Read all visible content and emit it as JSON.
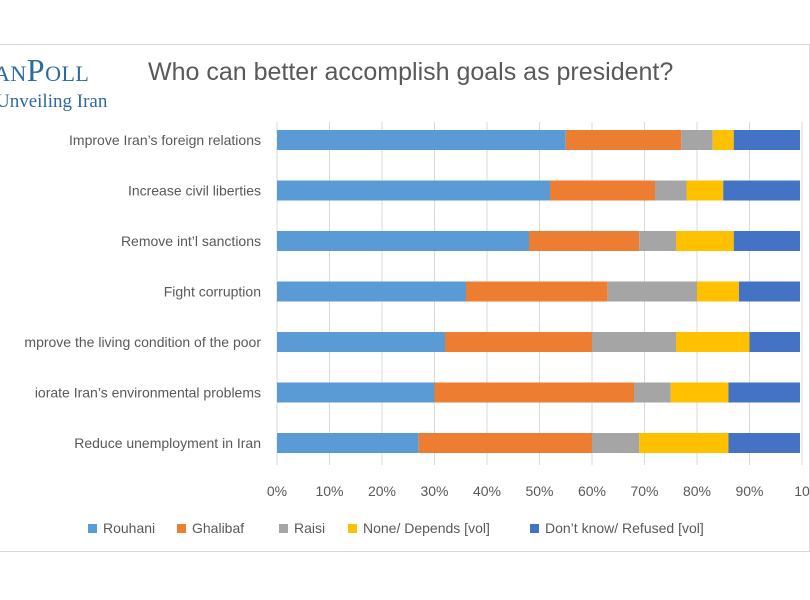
{
  "brand": {
    "logo_text": "anPoll",
    "tagline": "Unveiling Iran"
  },
  "chart_data": {
    "type": "bar",
    "orientation": "horizontal",
    "stacked": true,
    "title": "Who can better accomplish goals as president?",
    "categories": [
      "Improve Iran’s foreign relations",
      "Increase civil liberties",
      "Remove int’l sanctions",
      "Fight corruption",
      "mprove the living condition of the poor",
      "iorate Iran’s environmental problems",
      "Reduce unemployment in Iran"
    ],
    "series": [
      {
        "name": "Rouhani",
        "color": "#5b9bd5",
        "values": [
          55,
          52,
          48,
          36,
          32,
          30,
          27
        ]
      },
      {
        "name": "Ghalibaf",
        "color": "#ed7d31",
        "values": [
          22,
          20,
          21,
          27,
          28,
          38,
          33
        ]
      },
      {
        "name": "Raisi",
        "color": "#a5a5a5",
        "values": [
          6,
          6,
          7,
          17,
          16,
          7,
          9
        ]
      },
      {
        "name": "None/ Depends [vol]",
        "color": "#ffc000",
        "values": [
          4,
          7,
          11,
          8,
          14,
          11,
          17
        ]
      },
      {
        "name": "Don’t know/ Refused [vol]",
        "color": "#4472c4",
        "values": [
          13,
          15,
          13,
          12,
          10,
          14,
          14
        ]
      }
    ],
    "xlim": [
      0,
      100
    ],
    "x_ticks": [
      "0%",
      "10%",
      "20%",
      "30%",
      "40%",
      "50%",
      "60%",
      "70%",
      "80%",
      "90%",
      "10"
    ],
    "grid": true,
    "legend_position": "bottom"
  }
}
